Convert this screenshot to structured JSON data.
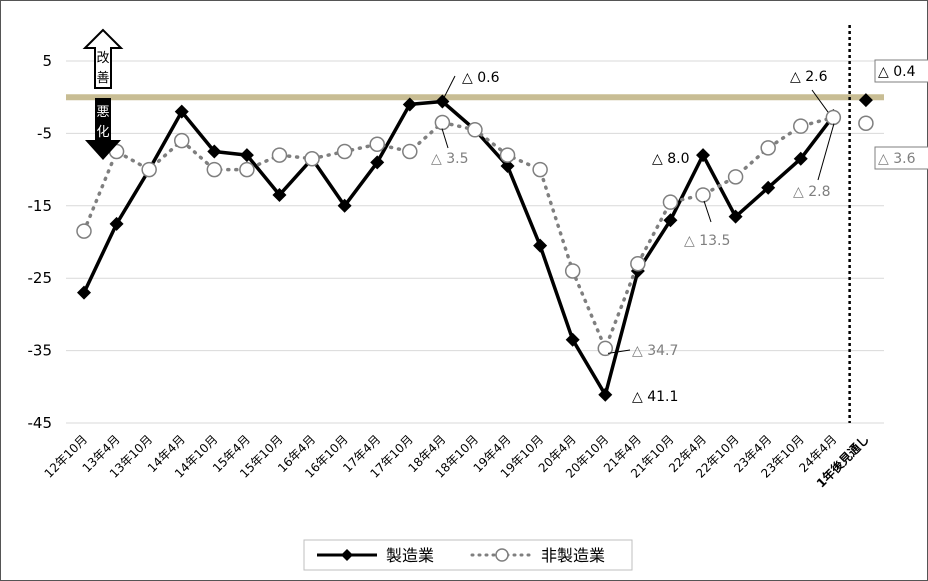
{
  "chart_data": {
    "type": "line",
    "categories": [
      "12年10月",
      "13年4月",
      "13年10月",
      "14年4月",
      "14年10月",
      "15年4月",
      "15年10月",
      "16年4月",
      "16年10月",
      "17年4月",
      "17年10月",
      "18年4月",
      "18年10月",
      "19年4月",
      "19年10月",
      "20年4月",
      "20年10月",
      "21年4月",
      "21年10月",
      "22年4月",
      "22年10月",
      "23年4月",
      "23年10月",
      "24年4月",
      "1年後見通し"
    ],
    "series": [
      {
        "name": "製造業",
        "values": [
          -27,
          -17.5,
          -10,
          -2,
          -7.5,
          -8,
          -13.5,
          -8.5,
          -15,
          -9,
          -1,
          -0.6,
          -4.5,
          -9.5,
          -20.5,
          -33.5,
          -41.1,
          -24,
          -17,
          -8.0,
          -16.5,
          -12.5,
          -8.5,
          -2.6,
          -0.4
        ],
        "color": "#000000",
        "marker": "diamond",
        "line": "solid"
      },
      {
        "name": "非製造業",
        "values": [
          -18.5,
          -7.5,
          -10,
          -6,
          -10,
          -10,
          -8,
          -8.5,
          -7.5,
          -6.5,
          -7.5,
          -3.5,
          -4.5,
          -8,
          -10,
          -24,
          -34.7,
          -23,
          -14.5,
          -13.5,
          -11,
          -7,
          -4,
          -2.8,
          -3.6
        ],
        "color": "#7f7f7f",
        "marker": "open-circle",
        "line": "dotted"
      }
    ],
    "ylim": [
      -45,
      10
    ],
    "yticks": [
      "5",
      "-5",
      "-15",
      "-25",
      "-35",
      "-45"
    ],
    "forecast_category": "1年後見通し",
    "reference_line_color": "#c8bd94",
    "annotations": {
      "mfg_18": "△ 0.6",
      "nonmfg_18": "△ 3.5",
      "nonmfg_20": "△ 34.7",
      "mfg_20": "△ 41.1",
      "mfg_22": "△ 8.0",
      "nonmfg_22": "△ 13.5",
      "mfg_24": "△ 2.6",
      "nonmfg_24": "△ 2.8",
      "mfg_forecast": "△ 0.4",
      "nonmfg_forecast": "△ 3.6"
    },
    "arrows": {
      "up_label": "改善",
      "down_label": "悪化"
    },
    "legend": {
      "position": "bottom",
      "items": [
        "製造業",
        "非製造業"
      ]
    }
  }
}
